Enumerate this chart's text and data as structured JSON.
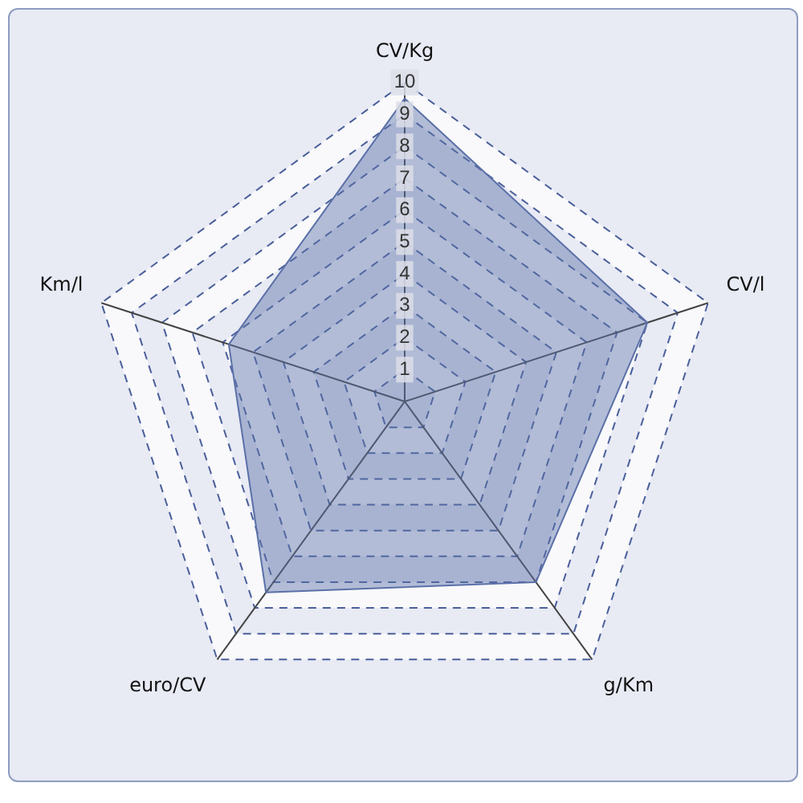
{
  "chart_data": {
    "type": "radar",
    "categories": [
      "CV/Kg",
      "CV/l",
      "g/Km",
      "euro/CV",
      "Km/l"
    ],
    "series": [
      {
        "color": "#5b70a8",
        "values": [
          9.5,
          8,
          7,
          7.4,
          5.8
        ]
      }
    ],
    "ylim": [
      0,
      10
    ],
    "yticks": [
      1,
      2,
      3,
      4,
      5,
      6,
      7,
      8,
      9,
      10
    ],
    "grid": true,
    "legend": false,
    "marker": "none",
    "line_style": "solid"
  }
}
